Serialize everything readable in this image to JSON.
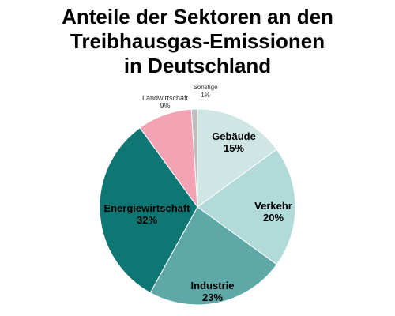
{
  "title": [
    "Anteile der Sektoren an den",
    "Treibhausgas-Emissionen",
    "in Deutschland"
  ],
  "chart_data": {
    "type": "pie",
    "title": "Anteile der Sektoren an den Treibhausgas-Emissionen in Deutschland",
    "slices": [
      {
        "label": "Gebäude",
        "value": 15,
        "value_label": "15%",
        "color": "#cfe6e5"
      },
      {
        "label": "Verkehr",
        "value": 20,
        "value_label": "20%",
        "color": "#b2dad9"
      },
      {
        "label": "Industrie",
        "value": 23,
        "value_label": "23%",
        "color": "#5ea8a7"
      },
      {
        "label": "Energiewirtschaft",
        "value": 32,
        "value_label": "32%",
        "color": "#0f7773"
      },
      {
        "label": "Landwirtschaft",
        "value": 9,
        "value_label": "9%",
        "color": "#f4a3b4"
      },
      {
        "label": "Sonstige",
        "value": 1,
        "value_label": "1%",
        "color": "#bdbdbd"
      }
    ],
    "start": "12 o'clock",
    "direction": "clockwise"
  }
}
